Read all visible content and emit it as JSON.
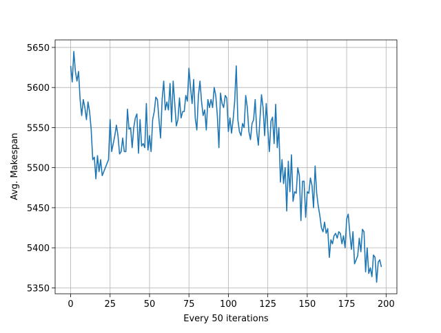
{
  "chart_data": {
    "type": "line",
    "xlabel": "Every 50 iterations",
    "ylabel": "Avg. Makespan",
    "x": [
      0,
      1,
      2,
      3,
      4,
      5,
      6,
      7,
      8,
      9,
      10,
      11,
      12,
      13,
      14,
      15,
      16,
      17,
      18,
      19,
      20,
      21,
      22,
      23,
      24,
      25,
      26,
      27,
      28,
      29,
      30,
      31,
      32,
      33,
      34,
      35,
      36,
      37,
      38,
      39,
      40,
      41,
      42,
      43,
      44,
      45,
      46,
      47,
      48,
      49,
      50,
      51,
      52,
      53,
      54,
      55,
      56,
      57,
      58,
      59,
      60,
      61,
      62,
      63,
      64,
      65,
      66,
      67,
      68,
      69,
      70,
      71,
      72,
      73,
      74,
      75,
      76,
      77,
      78,
      79,
      80,
      81,
      82,
      83,
      84,
      85,
      86,
      87,
      88,
      89,
      90,
      91,
      92,
      93,
      94,
      95,
      96,
      97,
      98,
      99,
      100,
      101,
      102,
      103,
      104,
      105,
      106,
      107,
      108,
      109,
      110,
      111,
      112,
      113,
      114,
      115,
      116,
      117,
      118,
      119,
      120,
      121,
      122,
      123,
      124,
      125,
      126,
      127,
      128,
      129,
      130,
      131,
      132,
      133,
      134,
      135,
      136,
      137,
      138,
      139,
      140,
      141,
      142,
      143,
      144,
      145,
      146,
      147,
      148,
      149,
      150,
      151,
      152,
      153,
      154,
      155,
      156,
      157,
      158,
      159,
      160,
      161,
      162,
      163,
      164,
      165,
      166,
      167,
      168,
      169,
      170,
      171,
      172,
      173,
      174,
      175,
      176,
      177,
      178,
      179,
      180,
      181,
      182,
      183,
      184,
      185,
      186,
      187,
      188,
      189,
      190,
      191,
      192,
      193,
      194,
      195,
      196,
      197
    ],
    "values": [
      5627,
      5607,
      5645,
      5620,
      5608,
      5620,
      5585,
      5565,
      5585,
      5575,
      5560,
      5582,
      5570,
      5548,
      5510,
      5513,
      5486,
      5515,
      5495,
      5510,
      5490,
      5495,
      5500,
      5505,
      5510,
      5560,
      5520,
      5530,
      5540,
      5553,
      5540,
      5517,
      5520,
      5537,
      5520,
      5520,
      5573,
      5548,
      5550,
      5525,
      5550,
      5562,
      5567,
      5518,
      5560,
      5527,
      5530,
      5525,
      5580,
      5522,
      5540,
      5520,
      5560,
      5570,
      5588,
      5585,
      5560,
      5537,
      5585,
      5608,
      5572,
      5582,
      5572,
      5605,
      5557,
      5608,
      5580,
      5552,
      5560,
      5587,
      5562,
      5570,
      5570,
      5590,
      5583,
      5624,
      5600,
      5580,
      5610,
      5562,
      5547,
      5590,
      5608,
      5582,
      5565,
      5572,
      5547,
      5585,
      5575,
      5585,
      5575,
      5600,
      5590,
      5565,
      5525,
      5593,
      5580,
      5575,
      5590,
      5587,
      5545,
      5562,
      5543,
      5560,
      5583,
      5627,
      5560,
      5545,
      5540,
      5555,
      5550,
      5590,
      5575,
      5545,
      5535,
      5555,
      5560,
      5585,
      5545,
      5528,
      5560,
      5591,
      5575,
      5540,
      5580,
      5548,
      5520,
      5558,
      5563,
      5530,
      5579,
      5525,
      5550,
      5482,
      5510,
      5480,
      5500,
      5446,
      5508,
      5470,
      5516,
      5458,
      5470,
      5468,
      5500,
      5490,
      5434,
      5483,
      5483,
      5438,
      5470,
      5468,
      5487,
      5478,
      5450,
      5502,
      5468,
      5452,
      5440,
      5425,
      5420,
      5432,
      5418,
      5424,
      5388,
      5410,
      5405,
      5415,
      5418,
      5412,
      5420,
      5418,
      5405,
      5415,
      5400,
      5436,
      5442,
      5418,
      5398,
      5420,
      5380,
      5385,
      5390,
      5412,
      5395,
      5423,
      5420,
      5370,
      5400,
      5368,
      5375,
      5364,
      5391,
      5388,
      5357,
      5382,
      5385,
      5376
    ],
    "color": "#1f77b4",
    "xlim": [
      -9.85,
      206.85
    ],
    "ylim": [
      5342.6,
      5659.4
    ],
    "xticks": [
      0,
      25,
      50,
      75,
      100,
      125,
      150,
      175,
      200
    ],
    "yticks": [
      5350,
      5400,
      5450,
      5500,
      5550,
      5600,
      5650
    ],
    "grid": true
  }
}
